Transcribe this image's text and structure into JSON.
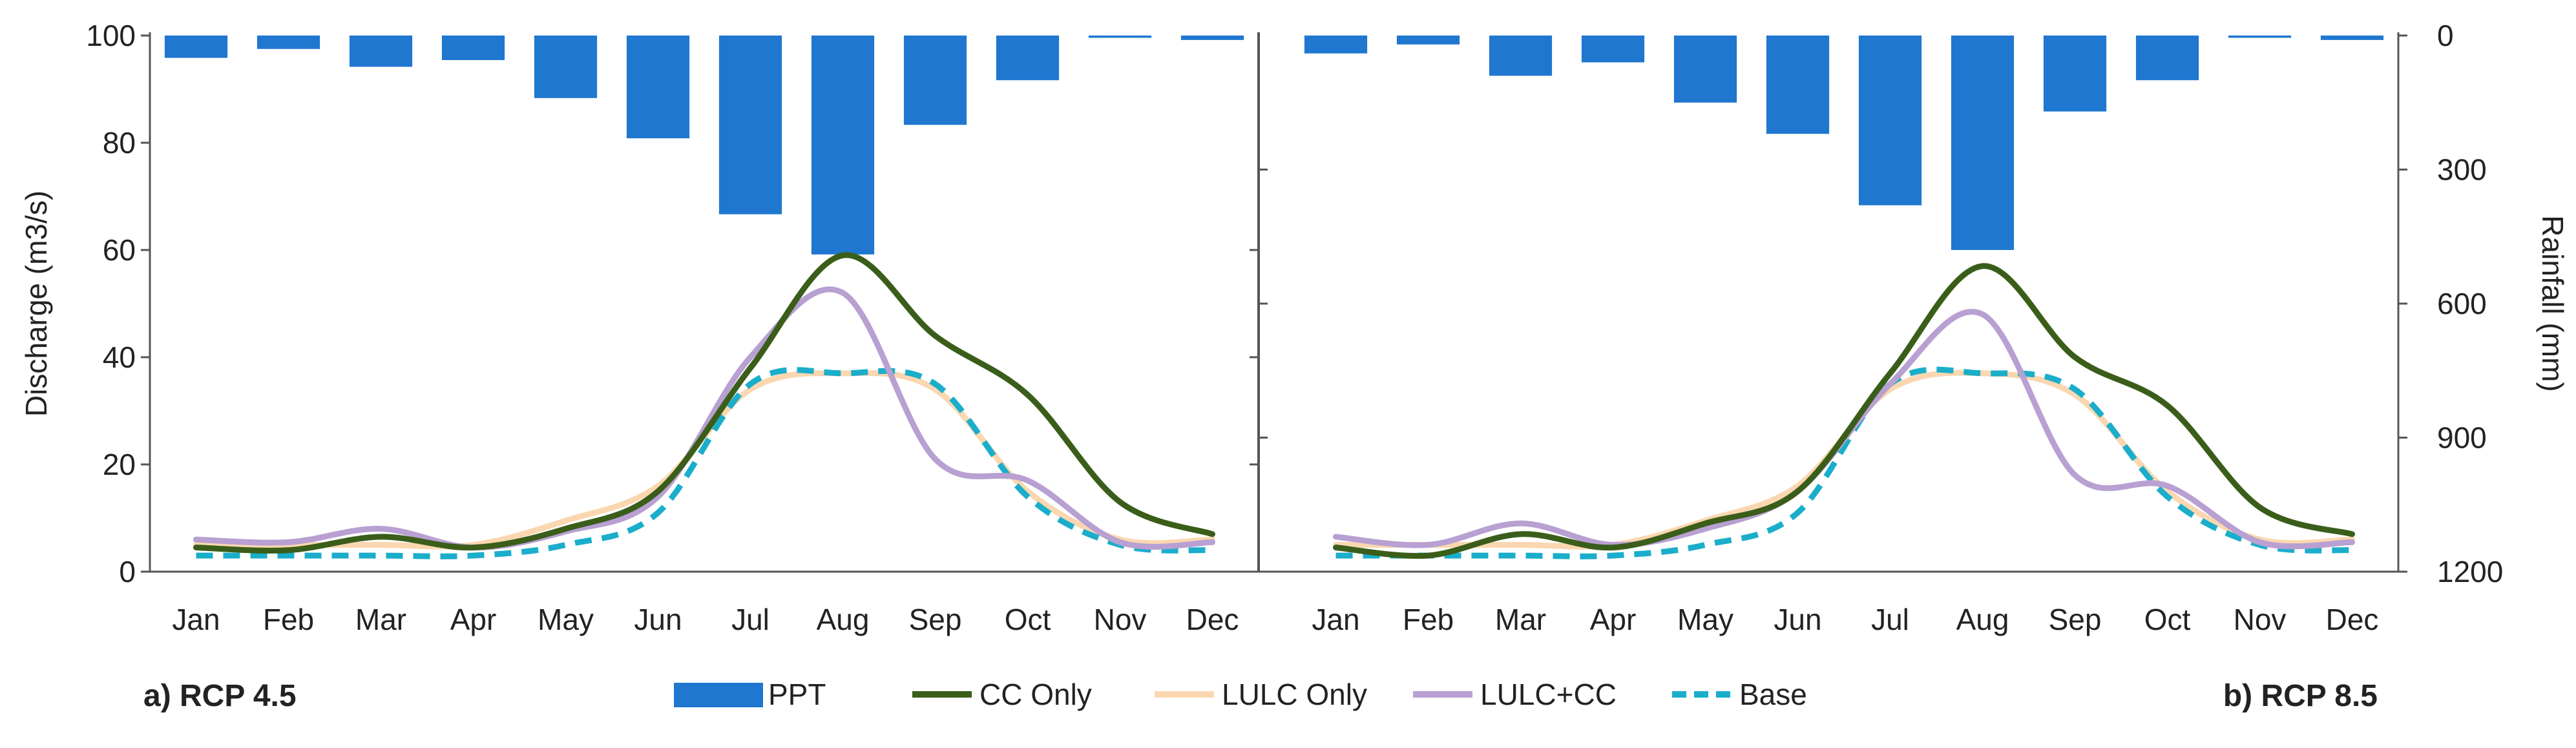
{
  "chart_data": {
    "type": "combo-bar-line",
    "months": [
      "Jan",
      "Feb",
      "Mar",
      "Apr",
      "May",
      "Jun",
      "Jul",
      "Aug",
      "Sep",
      "Oct",
      "Nov",
      "Dec"
    ],
    "y_left": {
      "label": "Discharge (m3/s)",
      "range": [
        0,
        100
      ],
      "ticks": [
        0,
        20,
        40,
        60,
        80,
        100
      ]
    },
    "y_right": {
      "label": "Rainfall (mm)",
      "range": [
        0,
        1200
      ],
      "inverted": true,
      "ticks": [
        0,
        300,
        600,
        900,
        1200
      ]
    },
    "colors": {
      "PPT": "#1f77d0",
      "CC Only": "#3a5e1a",
      "LULC Only": "#fad7b0",
      "LULC+CC": "#b8a0d2",
      "Base": "#1aaecb"
    },
    "legend": [
      {
        "name": "PPT",
        "kind": "bar"
      },
      {
        "name": "CC Only",
        "kind": "line"
      },
      {
        "name": "LULC Only",
        "kind": "line"
      },
      {
        "name": "LULC+CC",
        "kind": "line"
      },
      {
        "name": "Base",
        "kind": "dashed"
      }
    ],
    "panels": [
      {
        "label": "a) RCP 4.5",
        "ppt": [
          50,
          30,
          70,
          55,
          140,
          230,
          400,
          490,
          200,
          100,
          5,
          10
        ],
        "series": {
          "CC Only": [
            4.5,
            4,
            6.5,
            4.5,
            8,
            15,
            38,
            59,
            44,
            33,
            13,
            7
          ],
          "LULC Only": [
            5,
            5,
            5,
            5,
            9.5,
            16,
            34,
            37,
            34,
            15,
            6,
            6
          ],
          "LULC+CC": [
            6,
            5.5,
            8,
            4.5,
            7.5,
            14,
            40,
            52,
            21,
            17,
            5.5,
            5.5
          ],
          "Base": [
            3,
            3,
            3,
            3,
            5,
            11,
            35,
            37,
            35,
            14,
            5,
            4
          ]
        }
      },
      {
        "label": "b) RCP 8.5",
        "ppt": [
          40,
          20,
          90,
          60,
          150,
          220,
          380,
          480,
          170,
          100,
          5,
          10
        ],
        "series": {
          "CC Only": [
            4.5,
            3,
            7,
            4.5,
            9,
            15,
            37,
            57,
            40,
            31,
            12,
            7
          ],
          "LULC Only": [
            5,
            5,
            5,
            5,
            9.5,
            16,
            34,
            37,
            33,
            15,
            6,
            6
          ],
          "LULC+CC": [
            6.5,
            5,
            9,
            5,
            8,
            15,
            35,
            48,
            18,
            16,
            5.5,
            5.5
          ],
          "Base": [
            3,
            3,
            3,
            3,
            5,
            11,
            35,
            37,
            34,
            14,
            5,
            4
          ]
        }
      }
    ]
  }
}
